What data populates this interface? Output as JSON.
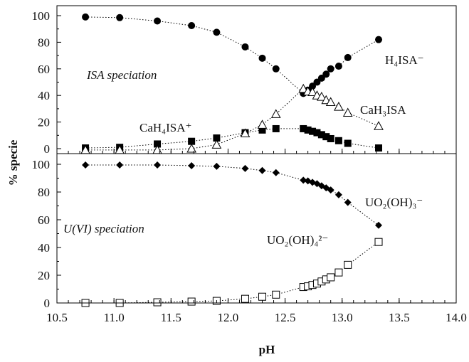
{
  "chart_data": [
    {
      "type": "scatter",
      "panel": "top",
      "annotation": "ISA speciation",
      "xlim": [
        10.5,
        14.0
      ],
      "ylim": [
        0,
        100
      ],
      "y_ticks": [
        "0",
        "20",
        "40",
        "60",
        "80",
        "100"
      ],
      "grid": false,
      "series": [
        {
          "name": "H₄ISA⁻",
          "marker": "filled-circle",
          "points": [
            [
              10.75,
              99
            ],
            [
              11.05,
              98.5
            ],
            [
              11.38,
              96
            ],
            [
              11.68,
              92.5
            ],
            [
              11.9,
              87.5
            ],
            [
              12.15,
              76.5
            ],
            [
              12.3,
              68
            ],
            [
              12.42,
              60
            ],
            [
              12.66,
              41.5
            ],
            [
              12.7,
              44
            ],
            [
              12.74,
              47
            ],
            [
              12.78,
              50
            ],
            [
              12.82,
              53
            ],
            [
              12.86,
              56
            ],
            [
              12.9,
              60
            ],
            [
              12.97,
              62
            ],
            [
              13.05,
              68.5
            ],
            [
              13.32,
              82
            ]
          ]
        },
        {
          "name": "CaH₄ISA⁺",
          "marker": "filled-square",
          "points": [
            [
              10.75,
              0.5
            ],
            [
              11.05,
              1
            ],
            [
              11.38,
              3.5
            ],
            [
              11.68,
              5.5
            ],
            [
              11.9,
              8
            ],
            [
              12.15,
              12
            ],
            [
              12.3,
              14
            ],
            [
              12.42,
              15
            ],
            [
              12.66,
              15
            ],
            [
              12.7,
              14
            ],
            [
              12.74,
              13
            ],
            [
              12.78,
              12
            ],
            [
              12.82,
              10.5
            ],
            [
              12.86,
              9
            ],
            [
              12.9,
              7.5
            ],
            [
              12.97,
              6
            ],
            [
              13.05,
              4
            ],
            [
              13.32,
              0.5
            ]
          ]
        },
        {
          "name": "CaH₃ISA",
          "marker": "open-triangle",
          "points": [
            [
              10.75,
              -1
            ],
            [
              11.05,
              -1
            ],
            [
              11.38,
              -1
            ],
            [
              11.68,
              0
            ],
            [
              11.9,
              3
            ],
            [
              12.15,
              11.5
            ],
            [
              12.3,
              18
            ],
            [
              12.42,
              26
            ],
            [
              12.66,
              45
            ],
            [
              12.7,
              43
            ],
            [
              12.74,
              42.5
            ],
            [
              12.78,
              40
            ],
            [
              12.82,
              39
            ],
            [
              12.86,
              36.5
            ],
            [
              12.9,
              35
            ],
            [
              12.97,
              31.5
            ],
            [
              13.05,
              27
            ],
            [
              13.32,
              17
            ]
          ]
        }
      ],
      "labels": [
        {
          "text": "H₄ISA⁻"
        },
        {
          "text": "CaH₃ISA"
        },
        {
          "text": "CaH₄ISA⁺"
        }
      ]
    },
    {
      "type": "scatter",
      "panel": "bottom",
      "annotation": "U(VI) speciation",
      "xlabel": "pH",
      "ylabel": "% specie",
      "xlim": [
        10.5,
        14.0
      ],
      "ylim": [
        0,
        105
      ],
      "x_ticks": [
        "10.5",
        "11.0",
        "11.5",
        "12.0",
        "12.5",
        "13.0",
        "13.5",
        "14.0"
      ],
      "y_ticks": [
        "0",
        "20",
        "40",
        "60",
        "80",
        "100"
      ],
      "grid": false,
      "series": [
        {
          "name": "UO₂(OH)₃⁻",
          "marker": "filled-diamond",
          "points": [
            [
              10.75,
              99.5
            ],
            [
              11.05,
              99.5
            ],
            [
              11.38,
              99.5
            ],
            [
              11.68,
              99
            ],
            [
              11.9,
              98.5
            ],
            [
              12.15,
              97
            ],
            [
              12.3,
              95.5
            ],
            [
              12.42,
              94
            ],
            [
              12.66,
              88.5
            ],
            [
              12.7,
              88
            ],
            [
              12.74,
              87
            ],
            [
              12.78,
              86
            ],
            [
              12.82,
              84.5
            ],
            [
              12.86,
              83
            ],
            [
              12.9,
              81.5
            ],
            [
              12.97,
              78
            ],
            [
              13.05,
              72.5
            ],
            [
              13.32,
              56
            ]
          ]
        },
        {
          "name": "UO₂(OH)₄²⁻",
          "marker": "open-square",
          "points": [
            [
              10.75,
              0
            ],
            [
              11.05,
              0
            ],
            [
              11.38,
              0.5
            ],
            [
              11.68,
              1
            ],
            [
              11.9,
              1.5
            ],
            [
              12.15,
              3
            ],
            [
              12.3,
              4.5
            ],
            [
              12.42,
              6
            ],
            [
              12.66,
              11.5
            ],
            [
              12.7,
              12
            ],
            [
              12.74,
              13
            ],
            [
              12.78,
              14
            ],
            [
              12.82,
              15.5
            ],
            [
              12.86,
              17
            ],
            [
              12.9,
              18.5
            ],
            [
              12.97,
              22
            ],
            [
              13.05,
              27.5
            ],
            [
              13.32,
              44
            ]
          ]
        }
      ],
      "labels": [
        {
          "text": "UO₂(OH)₃⁻"
        },
        {
          "text": "UO₂(OH)₄²⁻"
        }
      ]
    }
  ]
}
